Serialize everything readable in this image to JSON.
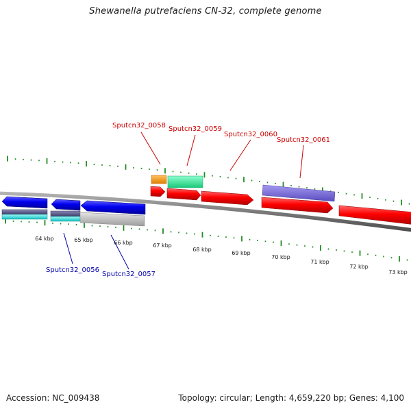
{
  "title": "Shewanella putrefaciens CN-32, complete genome",
  "footer": {
    "accession": "Accession: NC_009438",
    "summary": "Topology: circular; Length: 4,659,220 bp; Genes: 4,100"
  },
  "colors": {
    "tick": "#228b22",
    "backbone": "#808080",
    "forward_gene": "#ff0000",
    "reverse_gene": "#0000ff",
    "forward_label": "#cc0000",
    "reverse_label": "#0000aa",
    "feature_orange": "#ff9900",
    "feature_green": "#33ee99",
    "feature_purple": "#7766dd",
    "feature_cyan": "#22dddd",
    "feature_slate": "#555588",
    "feature_gray": "#c0c0c0"
  },
  "scale_labels": [
    "64 kbp",
    "65 kbp",
    "66 kbp",
    "67 kbp",
    "68 kbp",
    "69 kbp",
    "70 kbp",
    "71 kbp",
    "72 kbp",
    "73 kbp"
  ],
  "forward_gene_labels": [
    "Sputcn32_0058",
    "Sputcn32_0059",
    "Sputcn32_0060",
    "Sputcn32_0061"
  ],
  "reverse_gene_labels": [
    "Sputcn32_0056",
    "Sputcn32_0057"
  ]
}
